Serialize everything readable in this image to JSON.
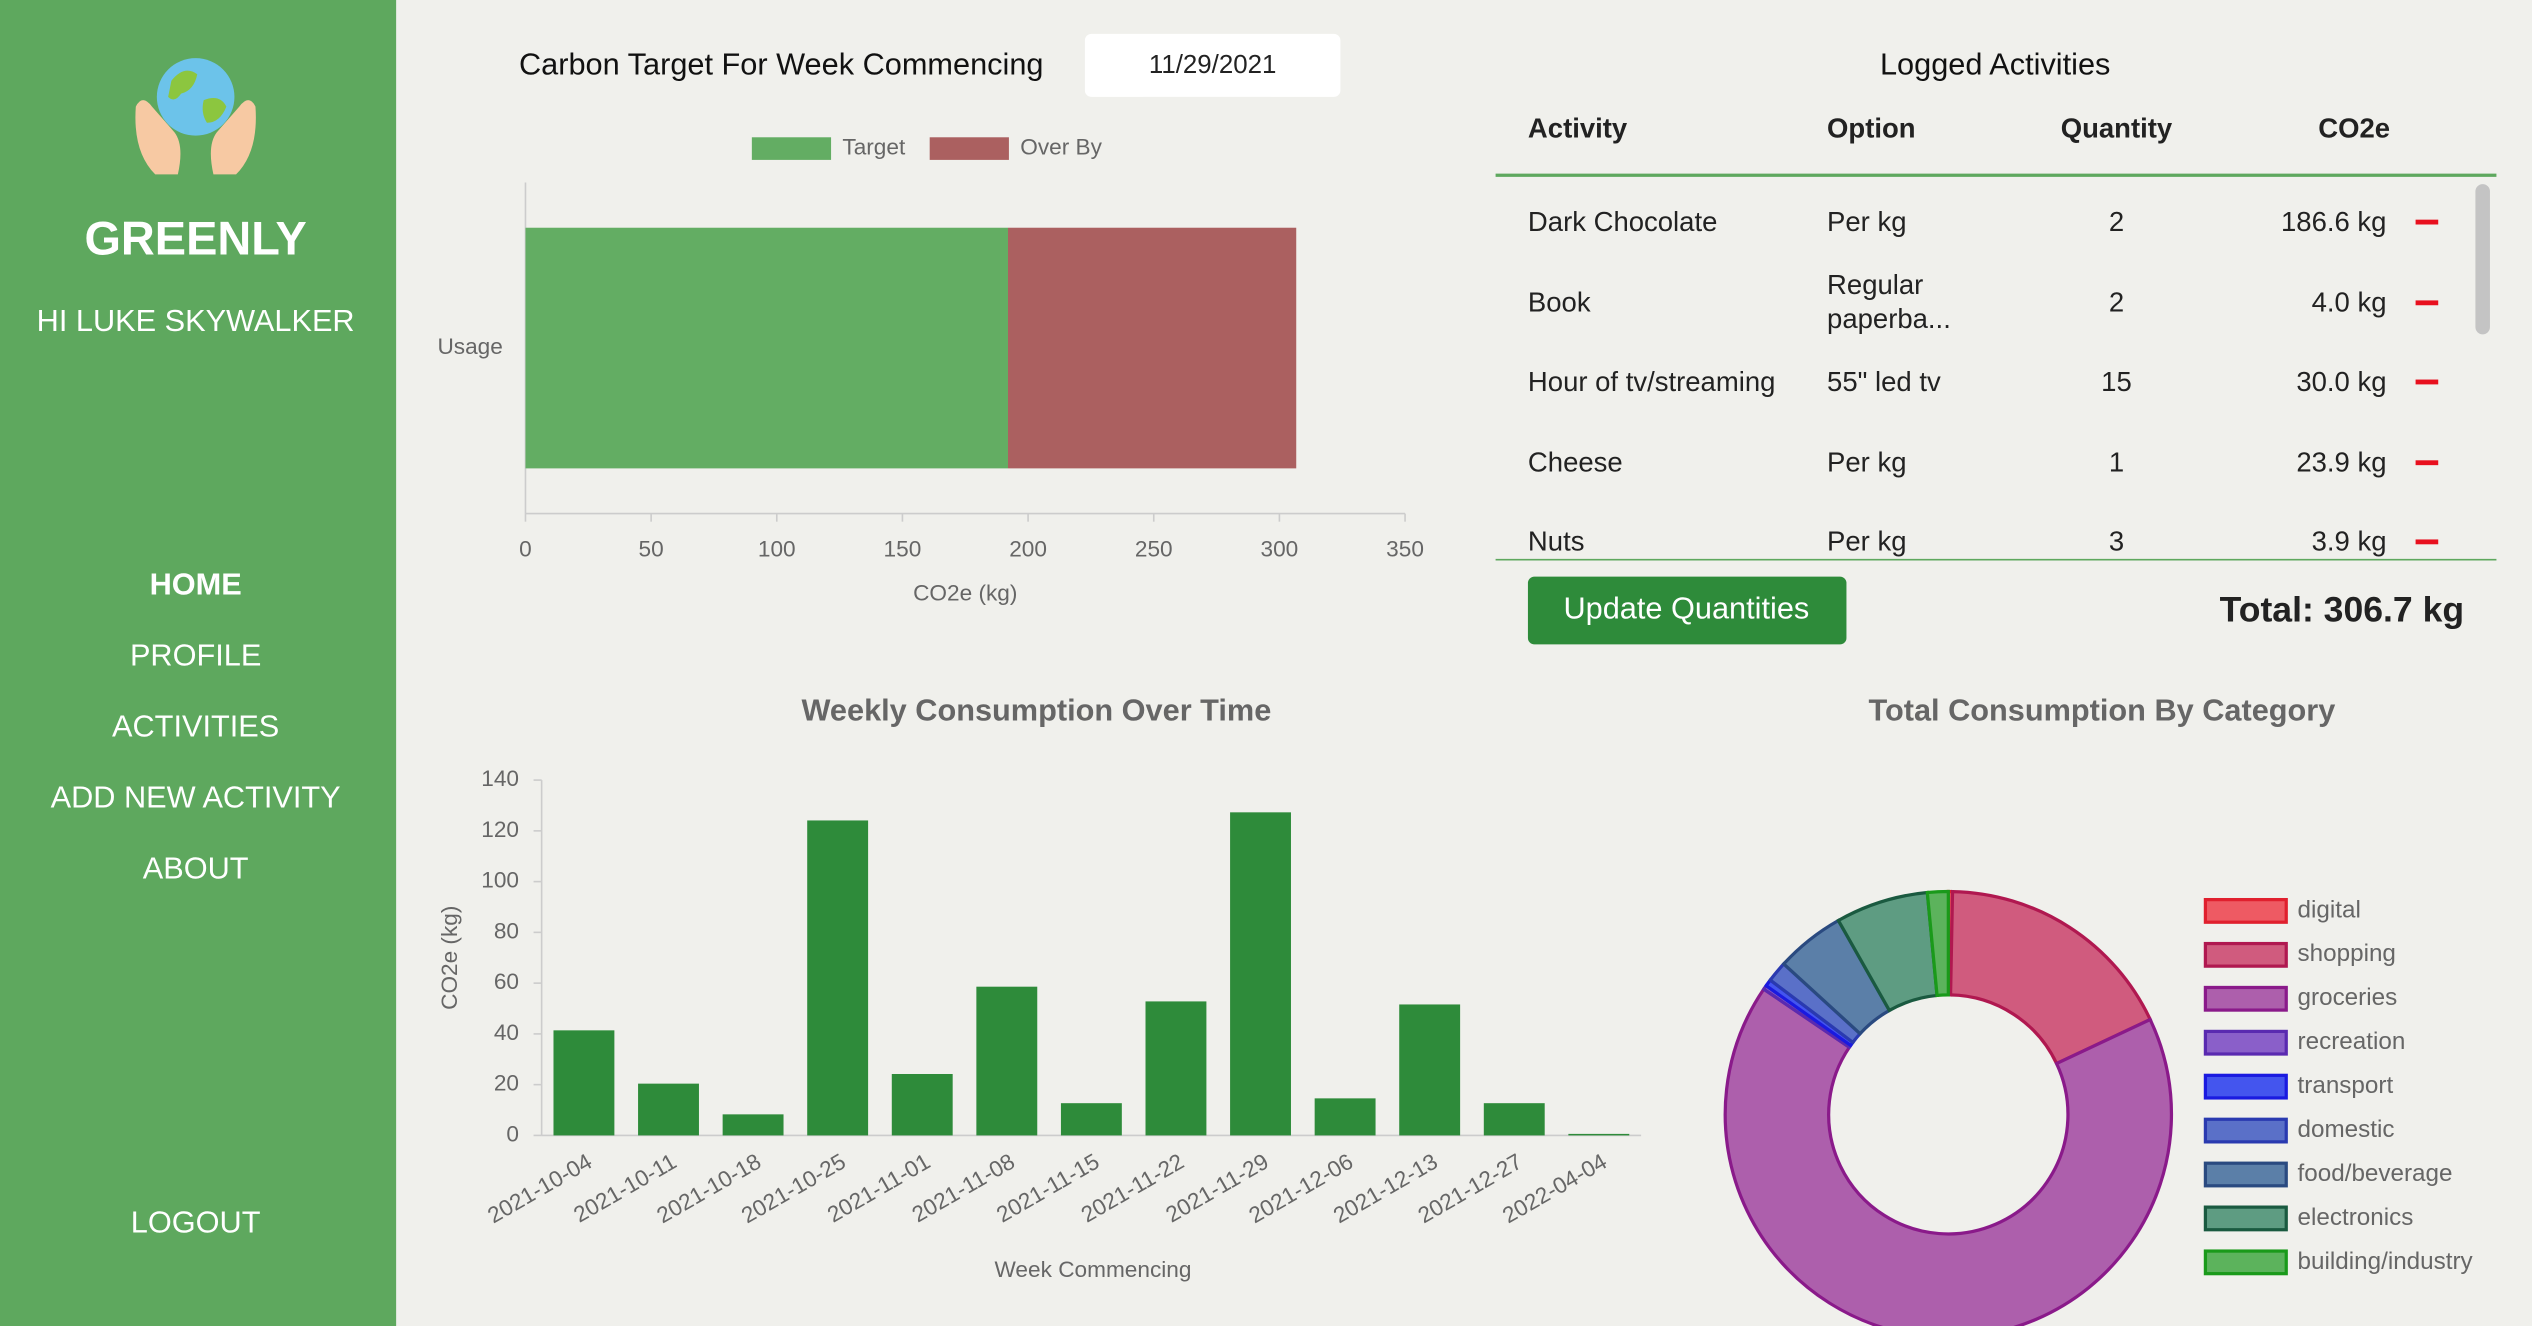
{
  "sidebar": {
    "brand": "GREENLY",
    "greeting": "HI LUKE SKYWALKER",
    "nav": [
      "HOME",
      "PROFILE",
      "ACTIVITIES",
      "ADD NEW ACTIVITY",
      "ABOUT"
    ],
    "logout": "LOGOUT"
  },
  "target_header": {
    "label": "Carbon Target For Week Commencing",
    "date": "11/29/2021"
  },
  "activities": {
    "title": "Logged Activities",
    "columns": [
      "Activity",
      "Option",
      "Quantity",
      "CO2e"
    ],
    "rows": [
      [
        "Dark Chocolate",
        "Per kg",
        "2",
        "186.6 kg"
      ],
      [
        "Book",
        "Regular paperba...",
        "2",
        "4.0 kg"
      ],
      [
        "Hour of tv/streaming",
        "55\" led tv",
        "15",
        "30.0 kg"
      ],
      [
        "Cheese",
        "Per kg",
        "1",
        "23.9 kg"
      ],
      [
        "Nuts",
        "Per kg",
        "3",
        "3.9 kg"
      ]
    ],
    "button": "Update Quantities",
    "total": "Total: 306.7 kg"
  },
  "chart_data": [
    {
      "type": "bar",
      "orientation": "horizontal",
      "stacked": true,
      "categories": [
        "Usage"
      ],
      "series": [
        {
          "name": "Target",
          "color": "#63ad63",
          "values": [
            192
          ]
        },
        {
          "name": "Over By",
          "color": "#ab6060",
          "values": [
            114.7
          ]
        }
      ],
      "xlim": [
        0,
        350
      ],
      "xticks": [
        0,
        50,
        100,
        150,
        200,
        250,
        300,
        350
      ],
      "xlabel": "CO2e (kg)"
    },
    {
      "type": "bar",
      "title": "Weekly Consumption Over Time",
      "categories": [
        "2021-10-04",
        "2021-10-11",
        "2021-10-18",
        "2021-10-25",
        "2021-11-01",
        "2021-11-08",
        "2021-11-15",
        "2021-11-22",
        "2021-11-29",
        "2021-12-06",
        "2021-12-13",
        "2021-12-27",
        "2022-04-04"
      ],
      "values": [
        41.4,
        20.4,
        8.3,
        124.1,
        24.2,
        58.6,
        12.7,
        52.8,
        127.3,
        14.6,
        51.6,
        12.7,
        0.6
      ],
      "color": "#2e8b3a",
      "ylim": [
        0,
        140
      ],
      "yticks": [
        0,
        20,
        40,
        60,
        80,
        100,
        120,
        140
      ],
      "xlabel": "Week Commencing",
      "ylabel": "CO2e (kg)"
    },
    {
      "type": "doughnut",
      "title": "Total Consumption By Category",
      "categories": [
        "digital",
        "shopping",
        "groceries",
        "recreation",
        "transport",
        "domestic",
        "food/beverage",
        "electronics",
        "building/industry"
      ],
      "values": [
        0.3,
        17.7,
        66.5,
        0.3,
        0.5,
        1.5,
        5,
        6.7,
        1.5
      ],
      "colors": [
        "#ee5a63",
        "#d05b7e",
        "#ad5fac",
        "#8a5fc9",
        "#4455ee",
        "#5a70c8",
        "#5b7fa8",
        "#5e9c82",
        "#5cb35c"
      ],
      "borders": [
        "#e0202e",
        "#b01850",
        "#8a1a8a",
        "#5a2ab0",
        "#1a1ae0",
        "#2a3ab0",
        "#2a4a80",
        "#1a5a40",
        "#1a9a1a"
      ],
      "legend": "right"
    }
  ]
}
